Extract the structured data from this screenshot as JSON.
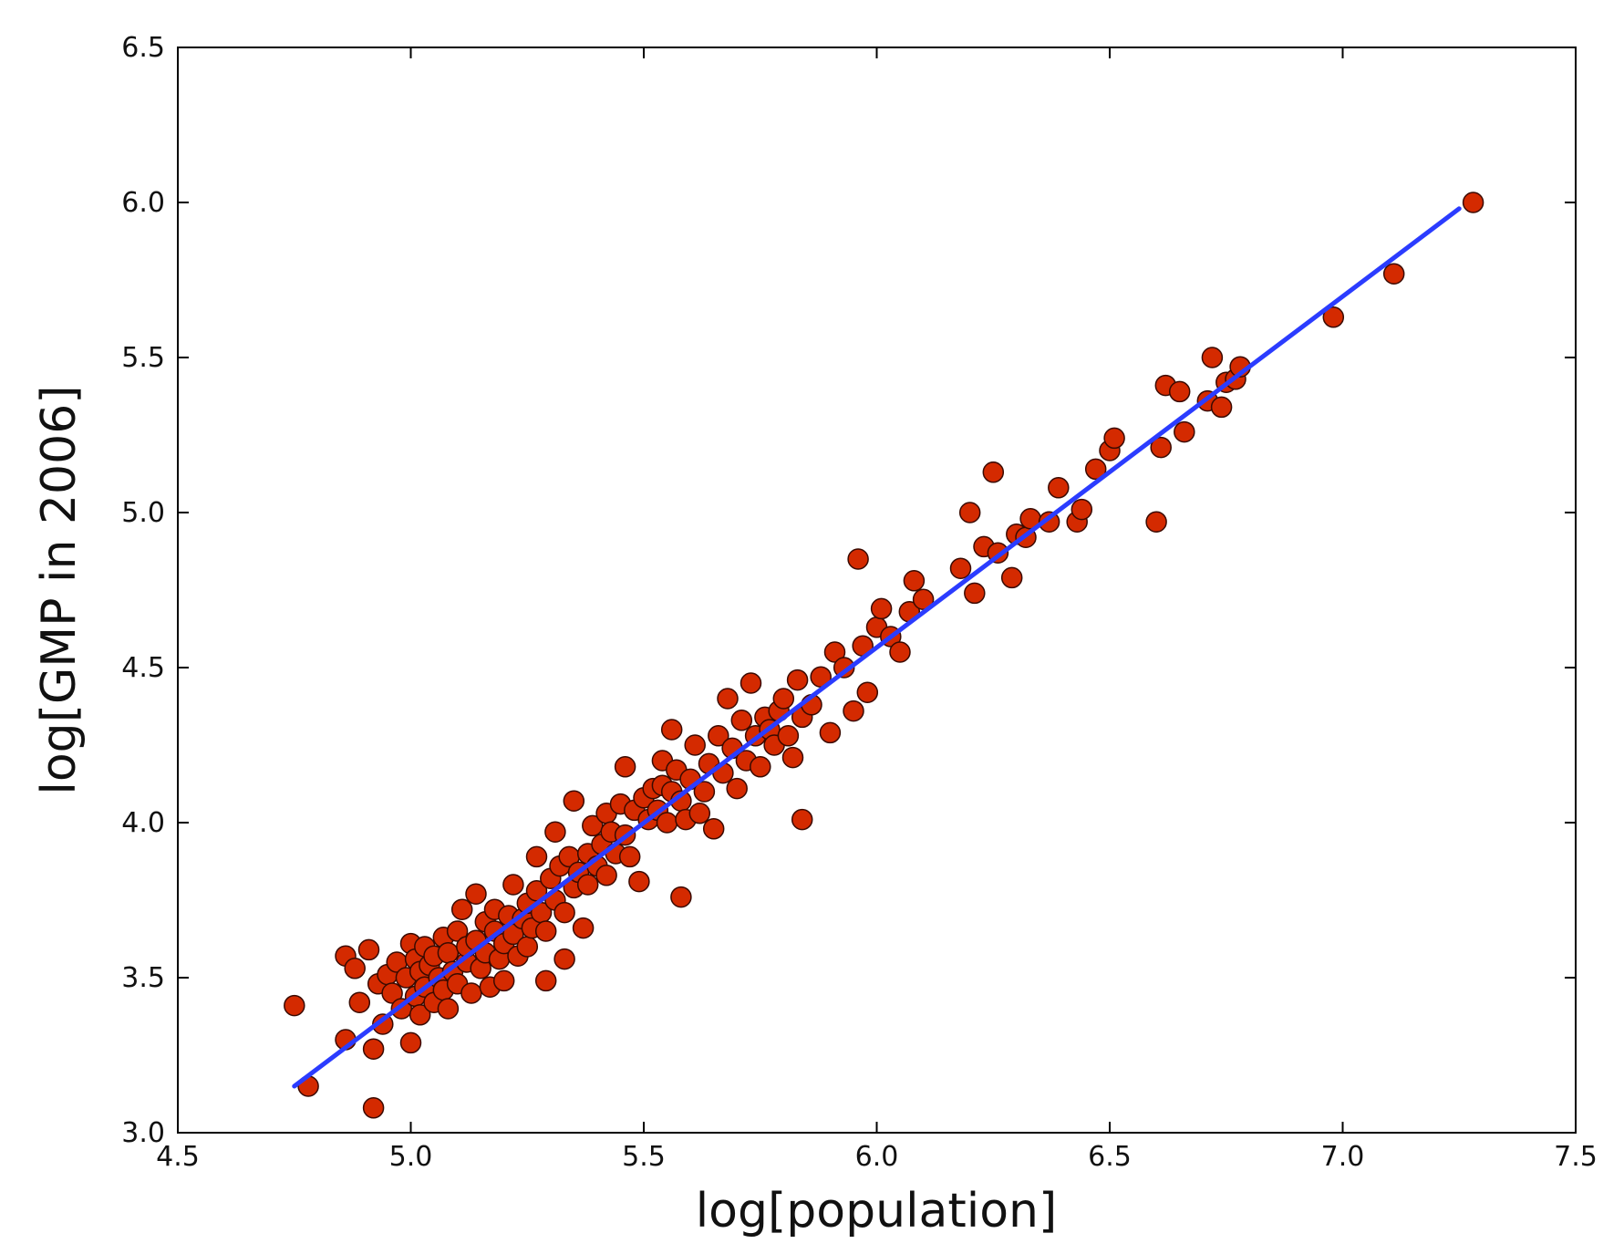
{
  "chart_data": {
    "type": "scatter",
    "title": "",
    "xlabel": "log[population]",
    "ylabel": "log[GMP in 2006]",
    "xlim": [
      4.5,
      7.5
    ],
    "ylim": [
      3.0,
      6.5
    ],
    "xticks": [
      4.5,
      5.0,
      5.5,
      6.0,
      6.5,
      7.0,
      7.5
    ],
    "yticks": [
      3.0,
      3.5,
      4.0,
      4.5,
      5.0,
      5.5,
      6.0,
      6.5
    ],
    "xtick_labels": [
      "4.5",
      "5.0",
      "5.5",
      "6.0",
      "6.5",
      "7.0",
      "7.5"
    ],
    "ytick_labels": [
      "3.0",
      "3.5",
      "4.0",
      "4.5",
      "5.0",
      "5.5",
      "6.0",
      "6.5"
    ],
    "grid": false,
    "legend": "none",
    "colors": {
      "points": "#d42a00",
      "point_edge": "#3a0a00",
      "fit_line": "#2b3cff"
    },
    "fit_line": {
      "x": [
        4.75,
        7.25
      ],
      "y": [
        3.15,
        5.98
      ]
    },
    "points": [
      [
        4.75,
        3.41
      ],
      [
        4.78,
        3.15
      ],
      [
        4.86,
        3.57
      ],
      [
        4.86,
        3.3
      ],
      [
        4.88,
        3.53
      ],
      [
        4.89,
        3.42
      ],
      [
        4.91,
        3.59
      ],
      [
        4.92,
        3.27
      ],
      [
        4.92,
        3.08
      ],
      [
        4.93,
        3.48
      ],
      [
        4.94,
        3.35
      ],
      [
        4.95,
        3.51
      ],
      [
        4.96,
        3.45
      ],
      [
        4.97,
        3.55
      ],
      [
        4.98,
        3.4
      ],
      [
        4.99,
        3.5
      ],
      [
        5.0,
        3.61
      ],
      [
        5.0,
        3.29
      ],
      [
        5.01,
        3.44
      ],
      [
        5.01,
        3.56
      ],
      [
        5.02,
        3.52
      ],
      [
        5.02,
        3.38
      ],
      [
        5.03,
        3.6
      ],
      [
        5.03,
        3.47
      ],
      [
        5.04,
        3.54
      ],
      [
        5.05,
        3.42
      ],
      [
        5.05,
        3.57
      ],
      [
        5.06,
        3.5
      ],
      [
        5.07,
        3.63
      ],
      [
        5.07,
        3.46
      ],
      [
        5.08,
        3.58
      ],
      [
        5.08,
        3.4
      ],
      [
        5.09,
        3.52
      ],
      [
        5.1,
        3.65
      ],
      [
        5.1,
        3.48
      ],
      [
        5.11,
        3.72
      ],
      [
        5.12,
        3.55
      ],
      [
        5.12,
        3.6
      ],
      [
        5.13,
        3.45
      ],
      [
        5.14,
        3.62
      ],
      [
        5.14,
        3.77
      ],
      [
        5.15,
        3.53
      ],
      [
        5.16,
        3.68
      ],
      [
        5.16,
        3.58
      ],
      [
        5.17,
        3.47
      ],
      [
        5.18,
        3.65
      ],
      [
        5.18,
        3.72
      ],
      [
        5.19,
        3.56
      ],
      [
        5.2,
        3.61
      ],
      [
        5.2,
        3.49
      ],
      [
        5.21,
        3.7
      ],
      [
        5.22,
        3.64
      ],
      [
        5.22,
        3.8
      ],
      [
        5.23,
        3.57
      ],
      [
        5.24,
        3.69
      ],
      [
        5.25,
        3.74
      ],
      [
        5.25,
        3.6
      ],
      [
        5.26,
        3.66
      ],
      [
        5.27,
        3.78
      ],
      [
        5.27,
        3.89
      ],
      [
        5.28,
        3.71
      ],
      [
        5.29,
        3.65
      ],
      [
        5.29,
        3.49
      ],
      [
        5.3,
        3.82
      ],
      [
        5.31,
        3.75
      ],
      [
        5.31,
        3.97
      ],
      [
        5.32,
        3.86
      ],
      [
        5.33,
        3.71
      ],
      [
        5.33,
        3.56
      ],
      [
        5.34,
        3.89
      ],
      [
        5.35,
        3.79
      ],
      [
        5.35,
        4.07
      ],
      [
        5.36,
        3.84
      ],
      [
        5.37,
        3.66
      ],
      [
        5.38,
        3.9
      ],
      [
        5.38,
        3.8
      ],
      [
        5.39,
        3.99
      ],
      [
        5.4,
        3.86
      ],
      [
        5.41,
        3.93
      ],
      [
        5.42,
        4.03
      ],
      [
        5.42,
        3.83
      ],
      [
        5.43,
        3.97
      ],
      [
        5.44,
        3.9
      ],
      [
        5.45,
        4.06
      ],
      [
        5.46,
        4.18
      ],
      [
        5.46,
        3.96
      ],
      [
        5.47,
        3.89
      ],
      [
        5.48,
        4.04
      ],
      [
        5.49,
        3.81
      ],
      [
        5.5,
        4.08
      ],
      [
        5.51,
        4.01
      ],
      [
        5.52,
        4.11
      ],
      [
        5.53,
        4.04
      ],
      [
        5.54,
        4.2
      ],
      [
        5.54,
        4.12
      ],
      [
        5.55,
        4.0
      ],
      [
        5.56,
        4.1
      ],
      [
        5.56,
        4.3
      ],
      [
        5.57,
        4.17
      ],
      [
        5.58,
        4.07
      ],
      [
        5.58,
        3.76
      ],
      [
        5.59,
        4.01
      ],
      [
        5.6,
        4.14
      ],
      [
        5.61,
        4.25
      ],
      [
        5.62,
        4.03
      ],
      [
        5.63,
        4.1
      ],
      [
        5.64,
        4.19
      ],
      [
        5.65,
        3.98
      ],
      [
        5.66,
        4.28
      ],
      [
        5.67,
        4.16
      ],
      [
        5.68,
        4.4
      ],
      [
        5.69,
        4.24
      ],
      [
        5.7,
        4.11
      ],
      [
        5.71,
        4.33
      ],
      [
        5.72,
        4.2
      ],
      [
        5.73,
        4.45
      ],
      [
        5.74,
        4.28
      ],
      [
        5.75,
        4.18
      ],
      [
        5.76,
        4.34
      ],
      [
        5.77,
        4.3
      ],
      [
        5.78,
        4.25
      ],
      [
        5.79,
        4.36
      ],
      [
        5.8,
        4.4
      ],
      [
        5.81,
        4.28
      ],
      [
        5.82,
        4.21
      ],
      [
        5.83,
        4.46
      ],
      [
        5.84,
        4.34
      ],
      [
        5.84,
        4.01
      ],
      [
        5.86,
        4.38
      ],
      [
        5.88,
        4.47
      ],
      [
        5.9,
        4.29
      ],
      [
        5.91,
        4.55
      ],
      [
        5.93,
        4.5
      ],
      [
        5.95,
        4.36
      ],
      [
        5.96,
        4.85
      ],
      [
        5.97,
        4.57
      ],
      [
        5.98,
        4.42
      ],
      [
        6.0,
        4.63
      ],
      [
        6.01,
        4.69
      ],
      [
        6.03,
        4.6
      ],
      [
        6.05,
        4.55
      ],
      [
        6.07,
        4.68
      ],
      [
        6.08,
        4.78
      ],
      [
        6.1,
        4.72
      ],
      [
        6.18,
        4.82
      ],
      [
        6.2,
        5.0
      ],
      [
        6.21,
        4.74
      ],
      [
        6.23,
        4.89
      ],
      [
        6.25,
        5.13
      ],
      [
        6.26,
        4.87
      ],
      [
        6.29,
        4.79
      ],
      [
        6.3,
        4.93
      ],
      [
        6.32,
        4.92
      ],
      [
        6.33,
        4.98
      ],
      [
        6.37,
        4.97
      ],
      [
        6.39,
        5.08
      ],
      [
        6.43,
        4.97
      ],
      [
        6.44,
        5.01
      ],
      [
        6.47,
        5.14
      ],
      [
        6.5,
        5.2
      ],
      [
        6.51,
        5.24
      ],
      [
        6.6,
        4.97
      ],
      [
        6.61,
        5.21
      ],
      [
        6.62,
        5.41
      ],
      [
        6.65,
        5.39
      ],
      [
        6.66,
        5.26
      ],
      [
        6.71,
        5.36
      ],
      [
        6.72,
        5.5
      ],
      [
        6.74,
        5.34
      ],
      [
        6.75,
        5.42
      ],
      [
        6.77,
        5.43
      ],
      [
        6.78,
        5.47
      ],
      [
        6.98,
        5.63
      ],
      [
        7.11,
        5.77
      ],
      [
        7.28,
        6.0
      ]
    ]
  }
}
